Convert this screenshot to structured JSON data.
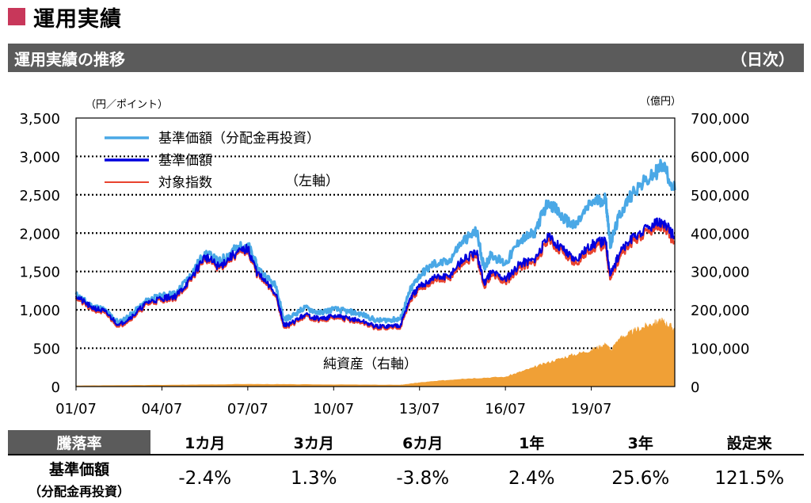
{
  "page": {
    "title": "運用実績"
  },
  "section": {
    "title": "運用実績の推移",
    "frequency": "（日次）"
  },
  "chart_data": {
    "type": "line",
    "left_axis": {
      "unit": "（円／ポイント）",
      "ylim": [
        0,
        3500
      ],
      "ticks": [
        "0",
        "500",
        "1,000",
        "1,500",
        "2,000",
        "2,500",
        "3,000",
        "3,500"
      ]
    },
    "right_axis": {
      "unit": "（億円）",
      "ylim": [
        0,
        700000
      ],
      "ticks": [
        "0",
        "100,000",
        "200,000",
        "300,000",
        "400,000",
        "500,000",
        "600,000",
        "700,000"
      ]
    },
    "x_ticks": [
      "01/07",
      "04/07",
      "07/07",
      "10/07",
      "13/07",
      "16/07",
      "19/07"
    ],
    "x_range": [
      "2001-07",
      "2022-06"
    ],
    "grid": true,
    "legend": {
      "placement": "top-left",
      "items": [
        "基準価額（分配金再投資）",
        "基準価額",
        "対象指数"
      ],
      "axis_note": "（左軸）"
    },
    "net_assets_label": "純資産（右軸）",
    "colors": {
      "reinvested": "#4aa8e6",
      "nav": "#0000dd",
      "index": "#e8432e",
      "net_assets": "#f0a036"
    },
    "series": [
      {
        "name": "基準価額（分配金再投資）",
        "axis": "left",
        "x": [
          "2001-07",
          "2002-01",
          "2002-07",
          "2003-01",
          "2003-07",
          "2004-01",
          "2004-07",
          "2005-01",
          "2005-07",
          "2006-01",
          "2006-07",
          "2007-01",
          "2007-07",
          "2007-11",
          "2008-07",
          "2008-10",
          "2009-01",
          "2009-07",
          "2010-01",
          "2010-07",
          "2011-01",
          "2011-07",
          "2012-01",
          "2012-07",
          "2012-11",
          "2013-03",
          "2013-07",
          "2014-01",
          "2014-07",
          "2015-01",
          "2015-07",
          "2015-10",
          "2016-01",
          "2016-07",
          "2017-01",
          "2017-07",
          "2018-01",
          "2018-07",
          "2018-12",
          "2019-07",
          "2020-01",
          "2020-03",
          "2020-07",
          "2021-01",
          "2021-09",
          "2022-01",
          "2022-06"
        ],
        "values": [
          1200,
          1060,
          1000,
          830,
          960,
          1130,
          1180,
          1220,
          1450,
          1750,
          1620,
          1780,
          1860,
          1550,
          1300,
          880,
          910,
          1030,
          960,
          1010,
          980,
          940,
          860,
          870,
          880,
          1250,
          1450,
          1600,
          1620,
          1900,
          2020,
          1550,
          1720,
          1600,
          1900,
          2000,
          2420,
          2200,
          2080,
          2400,
          2450,
          1850,
          2250,
          2560,
          2750,
          2900,
          2560
        ]
      },
      {
        "name": "基準価額",
        "axis": "left",
        "x": [
          "2001-07",
          "2002-01",
          "2002-07",
          "2003-01",
          "2003-07",
          "2004-01",
          "2004-07",
          "2005-01",
          "2005-07",
          "2006-01",
          "2006-07",
          "2007-01",
          "2007-07",
          "2007-11",
          "2008-07",
          "2008-10",
          "2009-01",
          "2009-07",
          "2010-01",
          "2010-07",
          "2011-01",
          "2011-07",
          "2012-01",
          "2012-07",
          "2012-11",
          "2013-03",
          "2013-07",
          "2014-01",
          "2014-07",
          "2015-01",
          "2015-07",
          "2015-10",
          "2016-01",
          "2016-07",
          "2017-01",
          "2017-07",
          "2018-01",
          "2018-07",
          "2018-12",
          "2019-07",
          "2020-01",
          "2020-03",
          "2020-07",
          "2021-01",
          "2021-09",
          "2022-01",
          "2022-06"
        ],
        "values": [
          1180,
          1040,
          980,
          800,
          930,
          1100,
          1150,
          1180,
          1400,
          1700,
          1560,
          1720,
          1800,
          1480,
          1200,
          800,
          820,
          940,
          880,
          920,
          890,
          850,
          780,
          790,
          800,
          1150,
          1300,
          1420,
          1430,
          1650,
          1740,
          1350,
          1500,
          1400,
          1600,
          1660,
          1950,
          1800,
          1650,
          1850,
          1900,
          1450,
          1750,
          1950,
          2100,
          2150,
          1950
        ]
      },
      {
        "name": "対象指数",
        "axis": "left",
        "x": [
          "2001-07",
          "2002-01",
          "2002-07",
          "2003-01",
          "2003-07",
          "2004-01",
          "2004-07",
          "2005-01",
          "2005-07",
          "2006-01",
          "2006-07",
          "2007-01",
          "2007-07",
          "2007-11",
          "2008-07",
          "2008-10",
          "2009-01",
          "2009-07",
          "2010-01",
          "2010-07",
          "2011-01",
          "2011-07",
          "2012-01",
          "2012-07",
          "2012-11",
          "2013-03",
          "2013-07",
          "2014-01",
          "2014-07",
          "2015-01",
          "2015-07",
          "2015-10",
          "2016-01",
          "2016-07",
          "2017-01",
          "2017-07",
          "2018-01",
          "2018-07",
          "2018-12",
          "2019-07",
          "2020-01",
          "2020-03",
          "2020-07",
          "2021-01",
          "2021-09",
          "2022-01",
          "2022-06"
        ],
        "values": [
          1160,
          1020,
          960,
          780,
          910,
          1080,
          1130,
          1160,
          1380,
          1680,
          1540,
          1700,
          1780,
          1460,
          1180,
          780,
          800,
          920,
          860,
          900,
          870,
          830,
          760,
          770,
          780,
          1120,
          1270,
          1380,
          1400,
          1610,
          1700,
          1310,
          1460,
          1360,
          1560,
          1620,
          1900,
          1760,
          1600,
          1800,
          1850,
          1400,
          1700,
          1900,
          2050,
          2100,
          1880
        ]
      },
      {
        "name": "純資産（右軸）",
        "axis": "right",
        "x": [
          "2001-07",
          "2005-01",
          "2007-07",
          "2010-01",
          "2012-11",
          "2013-07",
          "2015-01",
          "2016-07",
          "2017-07",
          "2018-07",
          "2019-07",
          "2020-01",
          "2020-03",
          "2020-07",
          "2021-01",
          "2021-09",
          "2022-01",
          "2022-06"
        ],
        "values": [
          2000,
          4000,
          6000,
          5000,
          4000,
          10000,
          20000,
          25000,
          50000,
          75000,
          95000,
          110000,
          95000,
          125000,
          145000,
          165000,
          170000,
          150000
        ]
      }
    ]
  },
  "performance": {
    "header_label": "騰落率",
    "periods": [
      "1カ月",
      "3カ月",
      "6カ月",
      "1年",
      "3年",
      "設定来"
    ],
    "row_label_line1": "基準価額",
    "row_label_line2": "（分配金再投資）",
    "values": [
      "-2.4%",
      "1.3%",
      "-3.8%",
      "2.4%",
      "25.6%",
      "121.5%"
    ]
  }
}
